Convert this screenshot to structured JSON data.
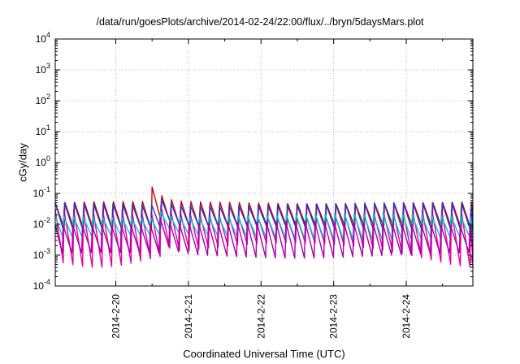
{
  "chart_data": {
    "type": "line",
    "title": "/data/run/goesPlots/archive/2014-02-24/22:00/flux/../bryn/5daysMars.plot",
    "xlabel": "Coordinated Universal Time (UTC)",
    "ylabel": "cGy/day",
    "yscale": "log",
    "ylim": [
      0.0001,
      10000
    ],
    "xlim": [
      "2014-02-19T04:00",
      "2014-02-24T22:00"
    ],
    "y_ticks": [
      {
        "base": "10",
        "exp": "4",
        "value": 10000
      },
      {
        "base": "10",
        "exp": "3",
        "value": 1000
      },
      {
        "base": "10",
        "exp": "2",
        "value": 100
      },
      {
        "base": "10",
        "exp": "1",
        "value": 10
      },
      {
        "base": "10",
        "exp": "0",
        "value": 1
      },
      {
        "base": "10",
        "exp": "-1",
        "value": 0.1
      },
      {
        "base": "10",
        "exp": "-2",
        "value": 0.01
      },
      {
        "base": "10",
        "exp": "-3",
        "value": 0.001
      },
      {
        "base": "10",
        "exp": "-4",
        "value": 0.0001
      }
    ],
    "x_ticks": [
      "2014-2-20",
      "2014-2-21",
      "2014-2-22",
      "2014-2-23",
      "2014-2-24"
    ],
    "grid": true,
    "sawtooth_period_hours": 3.2,
    "event": {
      "start": "2014-02-20T12:00",
      "peak": 0.16
    },
    "series": [
      {
        "color": "#cc0000",
        "peak_high": 0.055,
        "trough_high": 0.0085,
        "peak_low": 0.045,
        "trough_low": 0.0065,
        "offset_h": 0.0
      },
      {
        "color": "#e6009f",
        "peak_high": 0.03,
        "trough_high": 0.0025,
        "peak_low": 0.018,
        "trough_low": 0.0004,
        "offset_h": 0.3
      },
      {
        "color": "#3333cc",
        "peak_high": 0.05,
        "trough_high": 0.008,
        "peak_low": 0.04,
        "trough_low": 0.006,
        "offset_h": 0.15
      },
      {
        "color": "#00cccc",
        "peak_high": 0.022,
        "trough_high": 0.0045,
        "peak_low": 0.016,
        "trough_low": 0.003,
        "offset_h": 0.45
      },
      {
        "color": "#aa00aa",
        "peak_high": 0.012,
        "trough_high": 0.0012,
        "peak_low": 0.009,
        "trough_low": 0.0008,
        "offset_h": 0.6
      }
    ]
  }
}
